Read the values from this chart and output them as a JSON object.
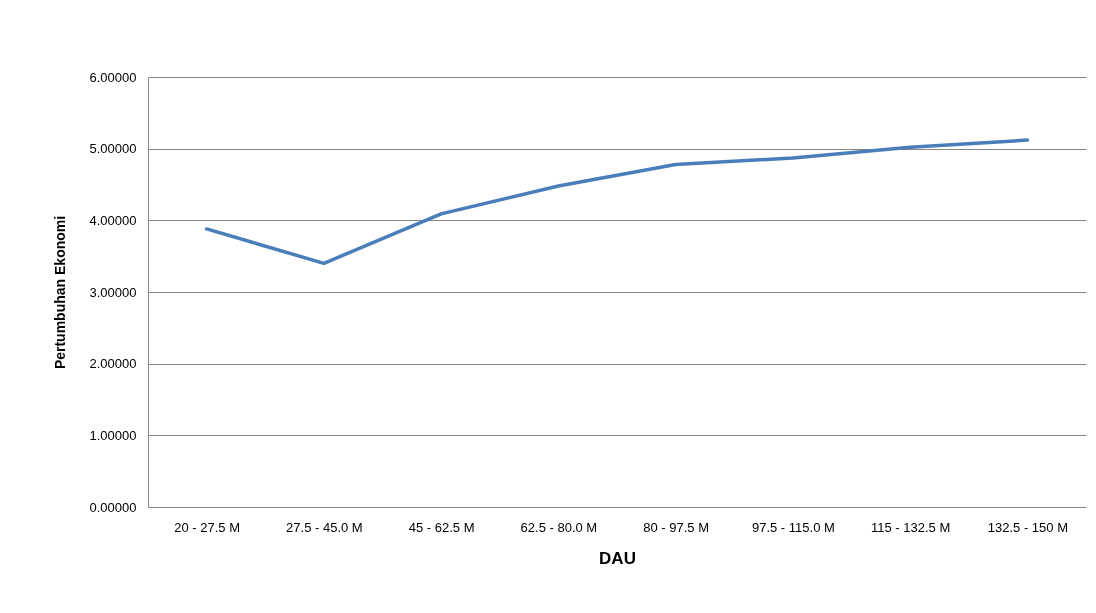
{
  "chart_data": {
    "type": "line",
    "xlabel": "DAU",
    "ylabel": "Pertumbuhan Ekonomi",
    "categories": [
      "20 - 27.5 M",
      "27.5 - 45.0 M",
      "45 - 62.5 M",
      "62.5 - 80.0 M",
      "80 - 97.5 M",
      "97.5 - 115.0 M",
      "115 - 132.5 M",
      "132.5 - 150 M"
    ],
    "series": [
      {
        "color": "#4a7ebb",
        "values": [
          3.88,
          3.4,
          4.09,
          4.48,
          4.78,
          4.87,
          5.02,
          5.12
        ]
      }
    ],
    "ylim": [
      0,
      6
    ],
    "yticks": [
      {
        "value": 0,
        "label": "0.00000"
      },
      {
        "value": 1,
        "label": "1.00000"
      },
      {
        "value": 2,
        "label": "2.00000"
      },
      {
        "value": 3,
        "label": "3.00000"
      },
      {
        "value": 4,
        "label": "4.00000"
      },
      {
        "value": 5,
        "label": "5.00000"
      },
      {
        "value": 6,
        "label": "6.00000"
      }
    ],
    "grid": "y",
    "marker": "none",
    "line_style": "solid",
    "legend": false
  }
}
